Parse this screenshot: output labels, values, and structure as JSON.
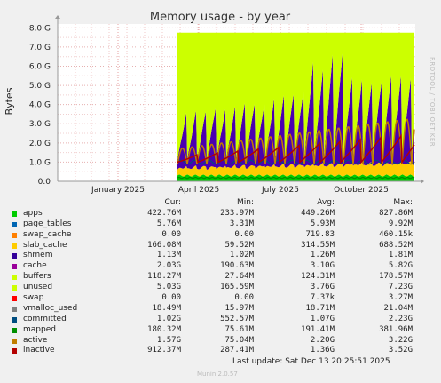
{
  "chart_data": {
    "type": "area",
    "title": "Memory usage - by year",
    "ylabel": "Bytes",
    "ylim": [
      0,
      8.2
    ],
    "yticks": [
      "0.0",
      "1.0 G",
      "2.0 G",
      "3.0 G",
      "4.0 G",
      "5.0 G",
      "6.0 G",
      "7.0 G",
      "8.0 G"
    ],
    "xticks": [
      "January 2025",
      "April 2025",
      "July 2025",
      "October 2025"
    ],
    "side_text": "RRDTOOL / TOBI OETIKER",
    "grid": true,
    "legend_position": "bottom",
    "columns": [
      "Cur:",
      "Min:",
      "Avg:",
      "Max:"
    ],
    "series": [
      {
        "name": "apps",
        "color": "#00cc00",
        "cur": "422.76M",
        "min": "233.97M",
        "avg": "449.26M",
        "max": "827.86M"
      },
      {
        "name": "page_tables",
        "color": "#0066b3",
        "cur": "5.76M",
        "min": "3.31M",
        "avg": "5.93M",
        "max": "9.92M"
      },
      {
        "name": "swap_cache",
        "color": "#ff8000",
        "cur": "0.00",
        "min": "0.00",
        "avg": "719.83",
        "max": "460.15k"
      },
      {
        "name": "slab_cache",
        "color": "#ffcc00",
        "cur": "166.08M",
        "min": "59.52M",
        "avg": "314.55M",
        "max": "688.52M"
      },
      {
        "name": "shmem",
        "color": "#330099",
        "cur": "1.13M",
        "min": "1.02M",
        "avg": "1.26M",
        "max": "1.81M"
      },
      {
        "name": "cache",
        "color": "#990099",
        "cur": "2.03G",
        "min": "190.63M",
        "avg": "3.10G",
        "max": "5.82G"
      },
      {
        "name": "buffers",
        "color": "#ccff00",
        "cur": "118.27M",
        "min": "27.64M",
        "avg": "124.31M",
        "max": "178.57M"
      },
      {
        "name": "unused",
        "color": "#ccff00",
        "cur": "5.03G",
        "min": "165.59M",
        "avg": "3.76G",
        "max": "7.23G"
      },
      {
        "name": "swap",
        "color": "#ff0000",
        "cur": "0.00",
        "min": "0.00",
        "avg": "7.37k",
        "max": "3.27M"
      },
      {
        "name": "vmalloc_used",
        "color": "#808080",
        "cur": "18.49M",
        "min": "15.97M",
        "avg": "18.71M",
        "max": "21.04M"
      },
      {
        "name": "committed",
        "color": "#004d80",
        "cur": "1.02G",
        "min": "552.57M",
        "avg": "1.07G",
        "max": "2.23G"
      },
      {
        "name": "mapped",
        "color": "#008f00",
        "cur": "180.32M",
        "min": "75.61M",
        "avg": "191.41M",
        "max": "381.96M"
      },
      {
        "name": "active",
        "color": "#c07d00",
        "cur": "1.57G",
        "min": "75.04M",
        "avg": "2.20G",
        "max": "3.22G"
      },
      {
        "name": "inactive",
        "color": "#b30000",
        "cur": "912.37M",
        "min": "287.41M",
        "avg": "1.36G",
        "max": "3.52G"
      }
    ],
    "last_update": "Last update: Sat Dec 13 20:25:51 2025",
    "footer": "Munin 2.0.57"
  }
}
